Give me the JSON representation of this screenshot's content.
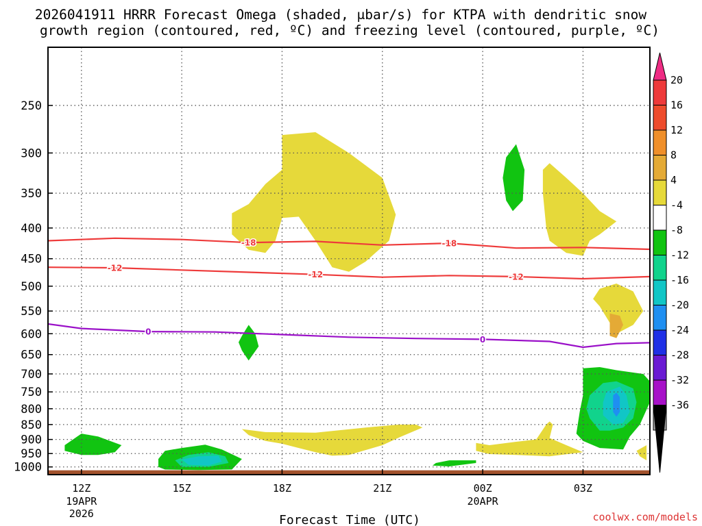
{
  "chart_data": {
    "type": "contour",
    "title": [
      "2026041911 HRRR Forecast Omega (shaded, μbar/s) for KTPA with dendritic snow",
      "growth region (contoured, red, ºC) and freezing level (contoured, purple, ºC)"
    ],
    "xlabel": "Forecast Time (UTC)",
    "ylabel": "",
    "credit": "coolwx.com/models",
    "x_ticks": [
      {
        "label": "12Z",
        "hour": 0,
        "sub": [
          "19APR",
          "2026"
        ]
      },
      {
        "label": "15Z",
        "hour": 3,
        "sub": []
      },
      {
        "label": "18Z",
        "hour": 6,
        "sub": []
      },
      {
        "label": "21Z",
        "hour": 9,
        "sub": []
      },
      {
        "label": "00Z",
        "hour": 12,
        "sub": [
          "20APR"
        ]
      },
      {
        "label": "03Z",
        "hour": 15,
        "sub": []
      }
    ],
    "xlim_hours": [
      -1,
      17
    ],
    "y_ticks": [
      250,
      300,
      350,
      400,
      450,
      500,
      550,
      600,
      650,
      700,
      750,
      800,
      850,
      900,
      950,
      1000
    ],
    "ylim_mb": [
      1030,
      200
    ],
    "colorbar": {
      "ticks": [
        20,
        16,
        12,
        8,
        4,
        -4,
        -8,
        -12,
        -16,
        -20,
        -24,
        -28,
        -32,
        -36
      ],
      "colors": [
        "#ee3a3a",
        "#ee4c2c",
        "#ef8f2a",
        "#e4aa36",
        "#e6d93a",
        "#ffffff",
        "#11c411",
        "#11d38c",
        "#11c6c6",
        "#1f8ff1",
        "#1f30e6",
        "#6a1ad3",
        "#a711c8",
        "#a8a8a8"
      ],
      "top_color": "#ef2c84",
      "bottom_color": "#000000"
    },
    "shading": [
      {
        "level": "4 to 8",
        "color": "#e6d93a",
        "regions": [
          {
            "name": "upper-yellow-1",
            "pts": [
              [
                5.0,
                365
              ],
              [
                5.5,
                338
              ],
              [
                6.0,
                320
              ],
              [
                6.0,
                280
              ],
              [
                7.0,
                277
              ],
              [
                8.0,
                300
              ],
              [
                9.0,
                330
              ],
              [
                9.4,
                380
              ],
              [
                9.2,
                420
              ],
              [
                8.5,
                455
              ],
              [
                8.0,
                473
              ],
              [
                7.5,
                465
              ],
              [
                7.0,
                420
              ],
              [
                6.5,
                383
              ],
              [
                6.0,
                385
              ],
              [
                5.8,
                420
              ],
              [
                5.5,
                440
              ],
              [
                5.0,
                435
              ],
              [
                4.5,
                410
              ],
              [
                4.5,
                378
              ]
            ]
          },
          {
            "name": "upper-yellow-2",
            "pts": [
              [
                14.0,
                312
              ],
              [
                14.5,
                330
              ],
              [
                15.0,
                350
              ],
              [
                15.5,
                375
              ],
              [
                16.0,
                390
              ],
              [
                15.5,
                410
              ],
              [
                15.2,
                420
              ],
              [
                15.0,
                445
              ],
              [
                14.5,
                440
              ],
              [
                14.0,
                420
              ],
              [
                13.9,
                400
              ],
              [
                13.8,
                350
              ],
              [
                13.8,
                320
              ]
            ]
          },
          {
            "name": "mid-yellow",
            "pts": [
              [
                15.5,
                540
              ],
              [
                16.0,
                600
              ],
              [
                16.5,
                580
              ],
              [
                16.8,
                550
              ],
              [
                16.5,
                510
              ],
              [
                16.0,
                495
              ],
              [
                15.5,
                505
              ],
              [
                15.3,
                525
              ]
            ]
          },
          {
            "name": "low-yellow-1",
            "pts": [
              [
                4.8,
                865
              ],
              [
                5.5,
                875
              ],
              [
                7.0,
                877
              ],
              [
                8.5,
                860
              ],
              [
                9.5,
                850
              ],
              [
                10.0,
                850
              ],
              [
                10.2,
                860
              ],
              [
                9.5,
                893
              ],
              [
                9.0,
                920
              ],
              [
                8.0,
                955
              ],
              [
                7.5,
                958
              ],
              [
                7.0,
                945
              ],
              [
                6.5,
                930
              ],
              [
                6.0,
                915
              ],
              [
                5.5,
                905
              ],
              [
                5.0,
                885
              ]
            ]
          },
          {
            "name": "low-yellow-2",
            "pts": [
              [
                11.8,
                912
              ],
              [
                12.2,
                920
              ],
              [
                13.0,
                908
              ],
              [
                13.6,
                900
              ],
              [
                13.9,
                850
              ],
              [
                14.0,
                840
              ],
              [
                14.1,
                850
              ],
              [
                14.0,
                895
              ],
              [
                14.5,
                920
              ],
              [
                15.0,
                945
              ],
              [
                14.0,
                960
              ],
              [
                13.0,
                955
              ],
              [
                12.2,
                952
              ],
              [
                11.8,
                940
              ]
            ]
          },
          {
            "name": "low-yellow-3",
            "pts": [
              [
                16.6,
                940
              ],
              [
                16.9,
                920
              ],
              [
                16.9,
                975
              ],
              [
                16.7,
                960
              ]
            ]
          }
        ]
      },
      {
        "level": "8 to 12",
        "color": "#e4aa36",
        "regions": [
          {
            "name": "orange-core",
            "pts": [
              [
                15.8,
                555
              ],
              [
                16.1,
                560
              ],
              [
                16.2,
                580
              ],
              [
                16.0,
                610
              ],
              [
                15.8,
                605
              ],
              [
                15.8,
                580
              ]
            ]
          }
        ]
      },
      {
        "level": "-8 to -4",
        "color": "#11c411",
        "regions": [
          {
            "name": "green-upper",
            "pts": [
              [
                12.7,
                305
              ],
              [
                13.0,
                290
              ],
              [
                13.25,
                320
              ],
              [
                13.2,
                360
              ],
              [
                12.9,
                375
              ],
              [
                12.7,
                360
              ],
              [
                12.6,
                330
              ]
            ]
          },
          {
            "name": "green-mid",
            "pts": [
              [
                4.8,
                605
              ],
              [
                5.0,
                580
              ],
              [
                5.2,
                600
              ],
              [
                5.3,
                630
              ],
              [
                5.0,
                665
              ],
              [
                4.8,
                640
              ],
              [
                4.7,
                620
              ]
            ]
          },
          {
            "name": "green-low-1",
            "pts": [
              [
                -0.5,
                920
              ],
              [
                0.0,
                880
              ],
              [
                0.5,
                890
              ],
              [
                1.2,
                920
              ],
              [
                1.0,
                945
              ],
              [
                0.5,
                955
              ],
              [
                0.0,
                955
              ],
              [
                -0.5,
                940
              ]
            ]
          },
          {
            "name": "green-low-2",
            "pts": [
              [
                2.3,
                970
              ],
              [
                2.5,
                940
              ],
              [
                3.0,
                930
              ],
              [
                3.7,
                918
              ],
              [
                4.2,
                935
              ],
              [
                4.8,
                970
              ],
              [
                4.5,
                1010
              ],
              [
                3.5,
                1012
              ],
              [
                2.5,
                1010
              ],
              [
                2.3,
                1000
              ]
            ]
          },
          {
            "name": "green-low-3",
            "pts": [
              [
                10.5,
                995
              ],
              [
                10.6,
                985
              ],
              [
                11.0,
                975
              ],
              [
                11.8,
                975
              ],
              [
                11.8,
                985
              ],
              [
                11.5,
                990
              ],
              [
                11.0,
                998
              ]
            ]
          },
          {
            "name": "green-low-4",
            "pts": [
              [
                15.0,
                685
              ],
              [
                15.5,
                682
              ],
              [
                16.0,
                690
              ],
              [
                16.8,
                700
              ],
              [
                17.0,
                720
              ],
              [
                17.0,
                780
              ],
              [
                16.7,
                850
              ],
              [
                16.4,
                890
              ],
              [
                16.2,
                935
              ],
              [
                15.5,
                930
              ],
              [
                15.0,
                905
              ],
              [
                14.8,
                880
              ],
              [
                14.9,
                810
              ],
              [
                15.0,
                760
              ]
            ]
          }
        ]
      },
      {
        "level": "-12 to -8",
        "color": "#11d38c",
        "regions": [
          {
            "name": "teal-low-1",
            "pts": [
              [
                2.8,
                975
              ],
              [
                3.2,
                955
              ],
              [
                3.8,
                945
              ],
              [
                4.3,
                960
              ],
              [
                4.4,
                985
              ],
              [
                3.8,
                1000
              ],
              [
                3.0,
                1000
              ]
            ]
          },
          {
            "name": "teal-low-2",
            "pts": [
              [
                15.2,
                760
              ],
              [
                15.6,
                725
              ],
              [
                16.0,
                720
              ],
              [
                16.5,
                740
              ],
              [
                16.6,
                780
              ],
              [
                16.5,
                830
              ],
              [
                16.2,
                860
              ],
              [
                15.8,
                870
              ],
              [
                15.5,
                870
              ],
              [
                15.2,
                830
              ],
              [
                15.1,
                800
              ]
            ]
          }
        ]
      },
      {
        "level": "-16 to -12",
        "color": "#11c6c6",
        "regions": [
          {
            "name": "cyan-low-1",
            "pts": [
              [
                3.0,
                972
              ],
              [
                3.5,
                960
              ],
              [
                4.1,
                958
              ],
              [
                4.2,
                980
              ],
              [
                3.8,
                995
              ],
              [
                3.2,
                992
              ]
            ]
          },
          {
            "name": "cyan-low-2",
            "pts": [
              [
                15.7,
                750
              ],
              [
                16.1,
                735
              ],
              [
                16.3,
                760
              ],
              [
                16.4,
                810
              ],
              [
                16.2,
                845
              ],
              [
                15.9,
                850
              ],
              [
                15.6,
                820
              ],
              [
                15.6,
                780
              ]
            ]
          }
        ]
      },
      {
        "level": "-20 to -16",
        "color": "#1f8ff1",
        "regions": [
          {
            "name": "blue-low",
            "pts": [
              [
                15.9,
                760
              ],
              [
                16.0,
                752
              ],
              [
                16.1,
                765
              ],
              [
                16.1,
                810
              ],
              [
                16.0,
                825
              ],
              [
                15.9,
                810
              ]
            ]
          }
        ]
      }
    ],
    "contours": [
      {
        "name": "dgz-minus-18",
        "label": "-18",
        "color": "#ee3a3a",
        "label_hours": [
          5.0,
          11.0
        ],
        "points": [
          [
            -1,
            420
          ],
          [
            1,
            416
          ],
          [
            3,
            418
          ],
          [
            5,
            423
          ],
          [
            7,
            421
          ],
          [
            9,
            427
          ],
          [
            11,
            424
          ],
          [
            13,
            432
          ],
          [
            15,
            431
          ],
          [
            17,
            434
          ]
        ]
      },
      {
        "name": "dgz-minus-12",
        "label": "-12",
        "color": "#ee3a3a",
        "label_hours": [
          1.0,
          7.0,
          13.0
        ],
        "points": [
          [
            -1,
            465
          ],
          [
            1,
            466
          ],
          [
            3,
            470
          ],
          [
            5,
            474
          ],
          [
            7,
            478
          ],
          [
            9,
            483
          ],
          [
            11,
            480
          ],
          [
            13,
            482
          ],
          [
            15,
            486
          ],
          [
            17,
            482
          ]
        ]
      },
      {
        "name": "freezing-level-0",
        "label": "0",
        "color": "#9a10c8",
        "label_hours": [
          2.0,
          12.0
        ],
        "points": [
          [
            -1,
            578
          ],
          [
            0,
            588
          ],
          [
            2,
            595
          ],
          [
            4,
            596
          ],
          [
            6,
            602
          ],
          [
            8,
            608
          ],
          [
            10,
            611
          ],
          [
            12,
            613
          ],
          [
            14,
            618
          ],
          [
            15,
            632
          ],
          [
            16,
            623
          ],
          [
            17,
            621
          ]
        ]
      }
    ],
    "terrain": {
      "color": "#a2522c",
      "from_mb": 1013
    }
  }
}
